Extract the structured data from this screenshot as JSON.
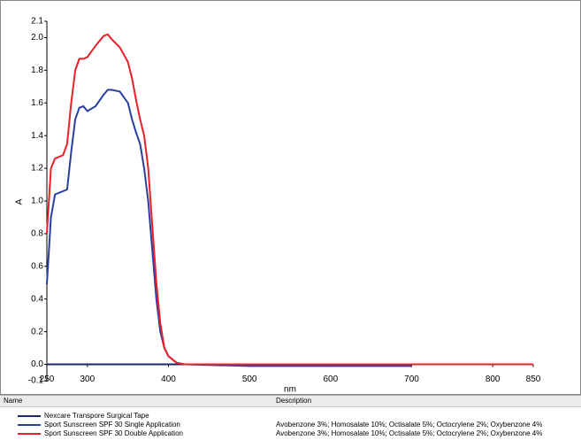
{
  "chart_data": {
    "type": "line",
    "xlabel": "nm",
    "ylabel": "A",
    "x": [
      250,
      255,
      260,
      270,
      275,
      280,
      285,
      290,
      295,
      300,
      310,
      320,
      325,
      330,
      340,
      350,
      355,
      360,
      365,
      370,
      375,
      380,
      385,
      390,
      395,
      400,
      410,
      420,
      500,
      600,
      700,
      850
    ],
    "series": [
      {
        "name": "Nexcare Transpore Surgical Tape",
        "color": "#1a2a6c",
        "values": [
          0,
          0,
          0,
          0,
          0,
          0,
          0,
          0,
          0,
          0,
          0,
          0,
          0,
          0,
          0,
          0,
          0,
          0,
          0,
          0,
          0,
          0,
          0,
          0,
          0,
          0,
          0,
          0,
          0,
          0,
          0,
          0
        ]
      },
      {
        "name": "Sport Sunscreen SPF 30 Single Application",
        "color": "#2a3fa0",
        "description": "Avobenzone 3%; Homosalate 10%; Octisalate 5%; Octocrylene 2%; Oxybenzone 4%",
        "values": [
          0.49,
          0.9,
          1.04,
          1.06,
          1.07,
          1.3,
          1.5,
          1.57,
          1.58,
          1.55,
          1.58,
          1.65,
          1.68,
          1.68,
          1.67,
          1.6,
          1.5,
          1.42,
          1.35,
          1.2,
          1.0,
          0.7,
          0.4,
          0.2,
          0.1,
          0.05,
          0.01,
          0.0,
          -0.01,
          -0.01,
          -0.01,
          null
        ]
      },
      {
        "name": "Sport Sunscreen SPF 30 Double Application",
        "color": "#e8202a",
        "description": "Avobenzone 3%; Homosalate 10%; Octisalate 5%; Octocrylene 2%; Oxybenzone 4%",
        "values": [
          0.8,
          1.2,
          1.26,
          1.28,
          1.35,
          1.6,
          1.8,
          1.87,
          1.87,
          1.88,
          1.95,
          2.01,
          2.02,
          1.99,
          1.94,
          1.85,
          1.75,
          1.62,
          1.5,
          1.4,
          1.2,
          0.85,
          0.5,
          0.25,
          0.1,
          0.05,
          0.01,
          0.0,
          0.0,
          0.0,
          0.0,
          0.0
        ]
      }
    ],
    "xlim": [
      250,
      850
    ],
    "xticks": [
      250,
      300,
      400,
      500,
      600,
      700,
      800,
      850
    ],
    "ylim": [
      -0.1,
      2.1
    ],
    "yticks": [
      2.1,
      {
        "value": 2.0,
        "label": "2.0"
      },
      1.8,
      1.6,
      1.4,
      1.2,
      {
        "value": 1.0,
        "label": "1.0"
      },
      0.8,
      0.6,
      0.4,
      0.2,
      {
        "value": 0.0,
        "label": "0.0"
      },
      -0.1
    ],
    "legend_headers": [
      "Name",
      "Description"
    ]
  }
}
